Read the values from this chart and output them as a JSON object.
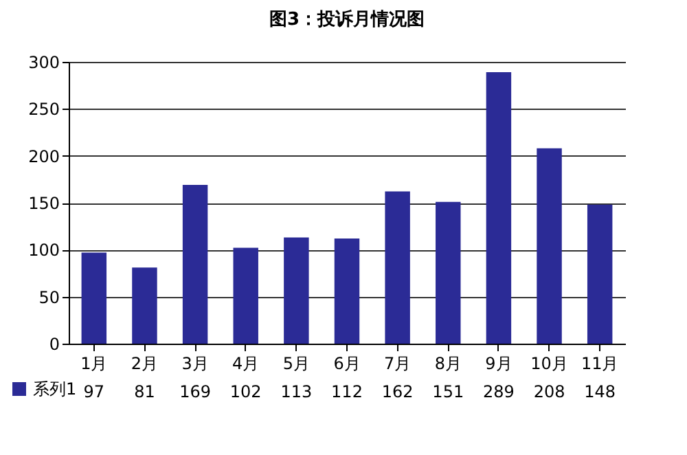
{
  "chart_data": {
    "type": "bar",
    "title": "图3：投诉月情况图",
    "categories": [
      "1月",
      "2月",
      "3月",
      "4月",
      "5月",
      "6月",
      "7月",
      "8月",
      "9月",
      "10月",
      "11月"
    ],
    "series": [
      {
        "name": "系列1",
        "color": "#2b2b96",
        "values": [
          97,
          81,
          169,
          102,
          113,
          112,
          162,
          151,
          289,
          208,
          148
        ]
      }
    ],
    "ylim": [
      0,
      300
    ],
    "yticks": [
      0,
      50,
      100,
      150,
      200,
      250,
      300
    ],
    "grid": "y",
    "legend": "bottom left",
    "data_labels": true
  }
}
